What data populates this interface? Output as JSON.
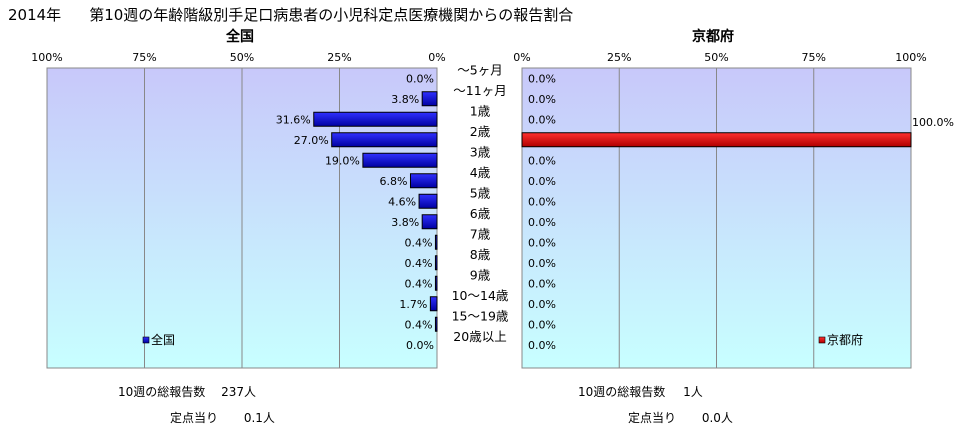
{
  "title": {
    "year": "2014年",
    "text": "第10週の年齢階級別手足口病患者の小児科定点医療機関からの報告割合"
  },
  "colors": {
    "national_bar": "#1010cc",
    "kyoto_bar": "#dd1010",
    "plot_top": "#c8c8fa",
    "plot_bottom": "#c8ffff"
  },
  "chart_data": [
    {
      "type": "bar",
      "orientation": "horizontal",
      "direction": "right-to-left",
      "title": "全国",
      "legend": "全国",
      "legend_position": "bottom-left",
      "grid": true,
      "xlim": [
        0,
        100
      ],
      "xticks": [
        "100%",
        "75%",
        "50%",
        "25%",
        "0%"
      ],
      "categories": [
        "～5ヶ月",
        "～11ヶ月",
        "1歳",
        "2歳",
        "3歳",
        "4歳",
        "5歳",
        "6歳",
        "7歳",
        "8歳",
        "9歳",
        "10～14歳",
        "15～19歳",
        "20歳以上"
      ],
      "values": [
        0.0,
        3.8,
        31.6,
        27.0,
        19.0,
        6.8,
        4.6,
        3.8,
        0.4,
        0.4,
        0.4,
        1.7,
        0.4,
        0.0
      ],
      "labels": [
        "0.0%",
        "3.8%",
        "31.6%",
        "27.0%",
        "19.0%",
        "6.8%",
        "4.6%",
        "3.8%",
        "0.4%",
        "0.4%",
        "0.4%",
        "1.7%",
        "0.4%",
        "0.0%"
      ]
    },
    {
      "type": "bar",
      "orientation": "horizontal",
      "direction": "left-to-right",
      "title": "京都府",
      "legend": "京都府",
      "legend_position": "bottom-right",
      "grid": true,
      "xlim": [
        0,
        100
      ],
      "xticks": [
        "0%",
        "25%",
        "50%",
        "75%",
        "100%"
      ],
      "categories": [
        "～5ヶ月",
        "～11ヶ月",
        "1歳",
        "2歳",
        "3歳",
        "4歳",
        "5歳",
        "6歳",
        "7歳",
        "8歳",
        "9歳",
        "10～14歳",
        "15～19歳",
        "20歳以上"
      ],
      "values": [
        0.0,
        0.0,
        0.0,
        100.0,
        0.0,
        0.0,
        0.0,
        0.0,
        0.0,
        0.0,
        0.0,
        0.0,
        0.0,
        0.0
      ],
      "labels": [
        "0.0%",
        "0.0%",
        "0.0%",
        "100.0%",
        "0.0%",
        "0.0%",
        "0.0%",
        "0.0%",
        "0.0%",
        "0.0%",
        "0.0%",
        "0.0%",
        "0.0%",
        "0.0%"
      ]
    }
  ],
  "summary": {
    "national": {
      "total_label": "10週の総報告数",
      "total_value": "237人",
      "per_label": "定点当り",
      "per_value": "0.1人"
    },
    "kyoto": {
      "total_label": "10週の総報告数",
      "total_value": "1人",
      "per_label": "定点当り",
      "per_value": "0.0人"
    }
  }
}
